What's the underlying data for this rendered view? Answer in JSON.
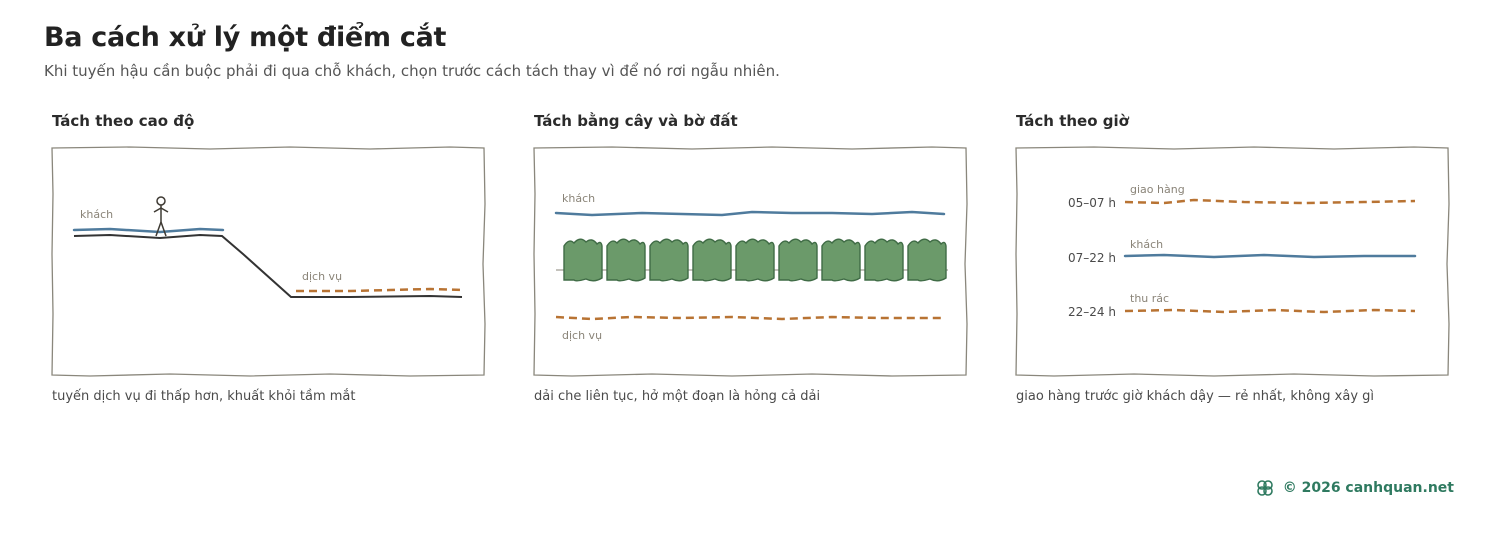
{
  "header": {
    "title": "Ba cách xử lý một điểm cắt",
    "subtitle": "Khi tuyến hậu cần buộc phải đi qua chỗ khách, chọn trước cách tách thay vì để nó rơi ngẫu nhiên."
  },
  "panels": [
    {
      "title": "Tách theo cao độ",
      "labels": {
        "guest": "khách",
        "service": "dịch vụ"
      },
      "caption": "tuyến dịch vụ đi thấp hơn, khuất khỏi tầm mắt"
    },
    {
      "title": "Tách bằng cây và bờ đất",
      "labels": {
        "guest": "khách",
        "service": "dịch vụ"
      },
      "caption": "dải che liên tục, hở một đoạn là hỏng cả dải"
    },
    {
      "title": "Tách theo giờ",
      "rows": [
        {
          "time": "05–07 h",
          "label": "giao hàng"
        },
        {
          "time": "07–22 h",
          "label": "khách"
        },
        {
          "time": "22–24 h",
          "label": "thu rác"
        }
      ],
      "caption": "giao hàng trước giờ khách dậy — rẻ nhất, không xây gì"
    }
  ],
  "colors": {
    "guest": "#4f7b9d",
    "service": "#b87333",
    "hedge": "#6b9a6a",
    "hedge_stroke": "#3f6b45",
    "ground": "#333333",
    "frame": "#8a877c"
  },
  "footer": {
    "text": "© 2026 canhquan.net",
    "icon": "celtic-knot-logo-icon"
  }
}
